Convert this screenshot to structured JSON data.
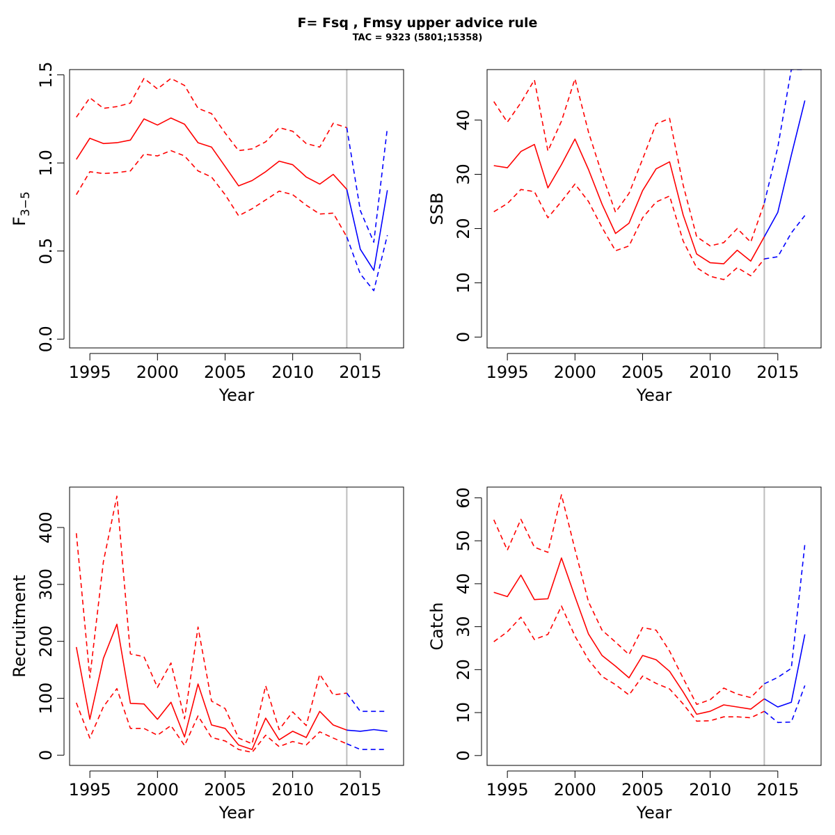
{
  "title": "F= Fsq , Fmsy upper advice rule",
  "subtitle": "TAC = 9323 (5801;15358)",
  "colors": {
    "historic": "#ff0000",
    "forecast": "#0000ff",
    "divider": "#bebebe"
  },
  "chart_data": [
    {
      "type": "line",
      "ylabel_html": "F̄",
      "ylabel_main": "F",
      "ylabel_sub": "3−5",
      "xlabel": "Year",
      "xlim": [
        1993.5,
        2018.2
      ],
      "ylim": [
        -0.05,
        1.53
      ],
      "xticks": [
        1995,
        2000,
        2005,
        2010,
        2015
      ],
      "yticks": [
        0.0,
        0.5,
        1.0,
        1.5
      ],
      "ytick_labels": [
        "0.0",
        "0.5",
        "1.0",
        "1.5"
      ],
      "divider_year": 2014,
      "series": [
        {
          "role": "historic-median",
          "years": [
            1994,
            1995,
            1996,
            1997,
            1998,
            1999,
            2000,
            2001,
            2002,
            2003,
            2004,
            2005,
            2006,
            2007,
            2008,
            2009,
            2010,
            2011,
            2012,
            2013,
            2014
          ],
          "values": [
            1.02,
            1.14,
            1.11,
            1.115,
            1.13,
            1.25,
            1.215,
            1.255,
            1.22,
            1.115,
            1.09,
            0.98,
            0.87,
            0.9,
            0.95,
            1.01,
            0.99,
            0.92,
            0.88,
            0.935,
            0.85
          ]
        },
        {
          "role": "historic-upper",
          "years": [
            1994,
            1995,
            1996,
            1997,
            1998,
            1999,
            2000,
            2001,
            2002,
            2003,
            2004,
            2005,
            2006,
            2007,
            2008,
            2009,
            2010,
            2011,
            2012,
            2013,
            2014
          ],
          "values": [
            1.26,
            1.37,
            1.31,
            1.32,
            1.34,
            1.48,
            1.42,
            1.48,
            1.44,
            1.31,
            1.28,
            1.17,
            1.07,
            1.08,
            1.12,
            1.2,
            1.18,
            1.11,
            1.09,
            1.225,
            1.2
          ]
        },
        {
          "role": "historic-lower",
          "years": [
            1994,
            1995,
            1996,
            1997,
            1998,
            1999,
            2000,
            2001,
            2002,
            2003,
            2004,
            2005,
            2006,
            2007,
            2008,
            2009,
            2010,
            2011,
            2012,
            2013,
            2014
          ],
          "values": [
            0.82,
            0.95,
            0.94,
            0.945,
            0.955,
            1.05,
            1.04,
            1.07,
            1.04,
            0.955,
            0.92,
            0.82,
            0.7,
            0.74,
            0.79,
            0.84,
            0.82,
            0.76,
            0.71,
            0.715,
            0.58
          ]
        },
        {
          "role": "forecast-median",
          "years": [
            2014,
            2015,
            2016,
            2017
          ],
          "values": [
            0.85,
            0.51,
            0.39,
            0.845
          ]
        },
        {
          "role": "forecast-upper",
          "years": [
            2014,
            2015,
            2016,
            2017
          ],
          "values": [
            1.2,
            0.73,
            0.55,
            1.2
          ]
        },
        {
          "role": "forecast-lower",
          "years": [
            2014,
            2015,
            2016,
            2017
          ],
          "values": [
            0.58,
            0.37,
            0.275,
            0.59
          ]
        }
      ]
    },
    {
      "type": "line",
      "ylabel_main": "SSB",
      "xlabel": "Year",
      "xlim": [
        1993.5,
        2018.2
      ],
      "ylim": [
        -2,
        49.3
      ],
      "xticks": [
        1995,
        2000,
        2005,
        2010,
        2015
      ],
      "yticks": [
        0,
        10,
        20,
        30,
        40
      ],
      "ytick_labels": [
        "0",
        "10",
        "20",
        "30",
        "40"
      ],
      "divider_year": 2014,
      "series": [
        {
          "role": "historic-median",
          "years": [
            1994,
            1995,
            1996,
            1997,
            1998,
            1999,
            2000,
            2001,
            2002,
            2003,
            2004,
            2005,
            2006,
            2007,
            2008,
            2009,
            2010,
            2011,
            2012,
            2013,
            2014
          ],
          "values": [
            31.6,
            31.2,
            34.2,
            35.5,
            27.5,
            31.8,
            36.5,
            30.9,
            24.5,
            19.1,
            21,
            27,
            31,
            32.3,
            22.5,
            15.3,
            13.7,
            13.5,
            16,
            14,
            18.5
          ]
        },
        {
          "role": "historic-upper",
          "years": [
            1994,
            1995,
            1996,
            1997,
            1998,
            1999,
            2000,
            2001,
            2002,
            2003,
            2004,
            2005,
            2006,
            2007,
            2008,
            2009,
            2010,
            2011,
            2012,
            2013,
            2014
          ],
          "values": [
            43.4,
            39.6,
            43.2,
            47.4,
            34.3,
            39.8,
            47.6,
            37.8,
            30,
            23,
            26.5,
            32.8,
            39.3,
            40.3,
            28,
            18.5,
            16.8,
            17.4,
            20,
            17.5,
            24.7
          ]
        },
        {
          "role": "historic-lower",
          "years": [
            1994,
            1995,
            1996,
            1997,
            1998,
            1999,
            2000,
            2001,
            2002,
            2003,
            2004,
            2005,
            2006,
            2007,
            2008,
            2009,
            2010,
            2011,
            2012,
            2013,
            2014
          ],
          "values": [
            23.1,
            24.6,
            27.2,
            26.8,
            22,
            25,
            28.2,
            25,
            20.2,
            15.9,
            16.8,
            22,
            24.9,
            26,
            17.7,
            12.8,
            11.2,
            10.6,
            12.8,
            11.3,
            14.4
          ]
        },
        {
          "role": "forecast-median",
          "years": [
            2014,
            2015,
            2016,
            2017
          ],
          "values": [
            18.5,
            23,
            33.5,
            43.6
          ]
        },
        {
          "role": "forecast-upper",
          "years": [
            2014,
            2015,
            2016,
            2017
          ],
          "values": [
            24.7,
            35,
            49.3,
            49.3
          ]
        },
        {
          "role": "forecast-lower",
          "years": [
            2014,
            2015,
            2016,
            2017
          ],
          "values": [
            14.4,
            14.8,
            19.2,
            22.4
          ]
        }
      ]
    },
    {
      "type": "line",
      "ylabel_main": "Recruitment",
      "xlabel": "Year",
      "xlim": [
        1993.5,
        2018.2
      ],
      "ylim": [
        -18,
        471
      ],
      "xticks": [
        1995,
        2000,
        2005,
        2010,
        2015
      ],
      "yticks": [
        0,
        100,
        200,
        300,
        400
      ],
      "ytick_labels": [
        "0",
        "100",
        "200",
        "300",
        "400"
      ],
      "divider_year": 2014,
      "series": [
        {
          "role": "historic-median",
          "years": [
            1994,
            1995,
            1996,
            1997,
            1998,
            1999,
            2000,
            2001,
            2002,
            2003,
            2004,
            2005,
            2006,
            2007,
            2008,
            2009,
            2010,
            2011,
            2012,
            2013,
            2014
          ],
          "values": [
            190,
            63,
            170,
            230,
            91,
            90,
            63,
            93,
            32,
            125,
            53,
            47,
            18,
            10,
            65,
            27,
            42,
            31,
            77,
            53,
            44
          ]
        },
        {
          "role": "historic-upper",
          "years": [
            1994,
            1995,
            1996,
            1997,
            1998,
            1999,
            2000,
            2001,
            2002,
            2003,
            2004,
            2005,
            2006,
            2007,
            2008,
            2009,
            2010,
            2011,
            2012,
            2013,
            2014
          ],
          "values": [
            390,
            136,
            340,
            455,
            178,
            173,
            119,
            162,
            64,
            225,
            95,
            82,
            30,
            20,
            122,
            45,
            76,
            52,
            142,
            106,
            109
          ]
        },
        {
          "role": "historic-lower",
          "years": [
            1994,
            1995,
            1996,
            1997,
            1998,
            1999,
            2000,
            2001,
            2002,
            2003,
            2004,
            2005,
            2006,
            2007,
            2008,
            2009,
            2010,
            2011,
            2012,
            2013,
            2014
          ],
          "values": [
            92,
            30,
            85,
            117,
            47,
            47,
            35,
            52,
            17,
            69,
            31,
            25,
            10,
            5,
            35,
            15,
            24,
            18,
            41,
            30,
            20
          ]
        },
        {
          "role": "forecast-median",
          "years": [
            2014,
            2015,
            2016,
            2017
          ],
          "values": [
            44,
            42,
            45,
            42
          ]
        },
        {
          "role": "forecast-upper",
          "years": [
            2014,
            2015,
            2016,
            2017
          ],
          "values": [
            109,
            77,
            77,
            77
          ]
        },
        {
          "role": "forecast-lower",
          "years": [
            2014,
            2015,
            2016,
            2017
          ],
          "values": [
            20,
            10,
            10,
            10
          ]
        }
      ]
    },
    {
      "type": "line",
      "ylabel_main": "Catch",
      "xlabel": "Year",
      "xlim": [
        1993.5,
        2018.2
      ],
      "ylim": [
        -2.3,
        62.5
      ],
      "xticks": [
        1995,
        2000,
        2005,
        2010,
        2015
      ],
      "yticks": [
        0,
        10,
        20,
        30,
        40,
        50,
        60
      ],
      "ytick_labels": [
        "0",
        "10",
        "20",
        "30",
        "40",
        "50",
        "60"
      ],
      "divider_year": 2014,
      "series": [
        {
          "role": "historic-median",
          "years": [
            1994,
            1995,
            1996,
            1997,
            1998,
            1999,
            2000,
            2001,
            2002,
            2003,
            2004,
            2005,
            2006,
            2007,
            2008,
            2009,
            2010,
            2011,
            2012,
            2013,
            2014
          ],
          "values": [
            38,
            37,
            42,
            36.3,
            36.5,
            46,
            37,
            28.3,
            23.3,
            20.8,
            18.1,
            23.3,
            22.3,
            19.6,
            14.8,
            9.6,
            10.3,
            11.8,
            11.3,
            10.8,
            13.2
          ]
        },
        {
          "role": "historic-upper",
          "years": [
            1994,
            1995,
            1996,
            1997,
            1998,
            1999,
            2000,
            2001,
            2002,
            2003,
            2004,
            2005,
            2006,
            2007,
            2008,
            2009,
            2010,
            2011,
            2012,
            2013,
            2014
          ],
          "values": [
            54.9,
            47.8,
            55,
            48.5,
            47.3,
            60.7,
            48,
            35.8,
            29.2,
            26.4,
            23.5,
            29.8,
            29.2,
            24.3,
            18,
            11.9,
            13,
            15.7,
            14.3,
            13.5,
            16.7
          ]
        },
        {
          "role": "historic-lower",
          "years": [
            1994,
            1995,
            1996,
            1997,
            1998,
            1999,
            2000,
            2001,
            2002,
            2003,
            2004,
            2005,
            2006,
            2007,
            2008,
            2009,
            2010,
            2011,
            2012,
            2013,
            2014
          ],
          "values": [
            26.5,
            28.8,
            32.2,
            27,
            28.2,
            34.8,
            27.8,
            22.3,
            18.4,
            16.5,
            14.1,
            18.5,
            16.8,
            15.5,
            12,
            8,
            8.1,
            9,
            9,
            8.8,
            10.3
          ]
        },
        {
          "role": "forecast-median",
          "years": [
            2014,
            2015,
            2016,
            2017
          ],
          "values": [
            13.2,
            11.3,
            12.4,
            28.2
          ]
        },
        {
          "role": "forecast-upper",
          "years": [
            2014,
            2015,
            2016,
            2017
          ],
          "values": [
            16.7,
            18.2,
            20.3,
            49.2
          ]
        },
        {
          "role": "forecast-lower",
          "years": [
            2014,
            2015,
            2016,
            2017
          ],
          "values": [
            10.3,
            7.7,
            7.8,
            16.3
          ]
        }
      ]
    }
  ]
}
